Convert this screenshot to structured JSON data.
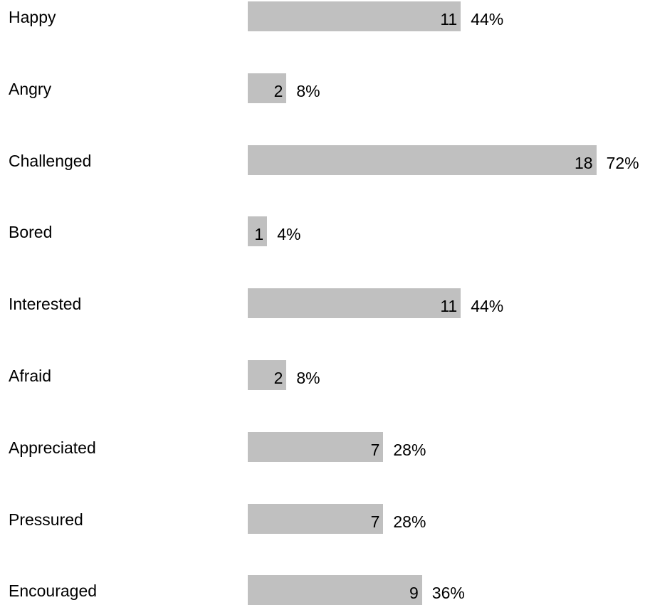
{
  "chart_data": {
    "type": "bar",
    "orientation": "horizontal",
    "categories": [
      "Happy",
      "Angry",
      "Challenged",
      "Bored",
      "Interested",
      "Afraid",
      "Appreciated",
      "Pressured",
      "Encouraged"
    ],
    "values": [
      11,
      2,
      18,
      1,
      11,
      2,
      7,
      7,
      9
    ],
    "percent_labels": [
      "44%",
      "8%",
      "72%",
      "4%",
      "44%",
      "8%",
      "28%",
      "28%",
      "36%"
    ],
    "bar_color": "#c0c0c0",
    "grid": false,
    "legend": "none"
  }
}
